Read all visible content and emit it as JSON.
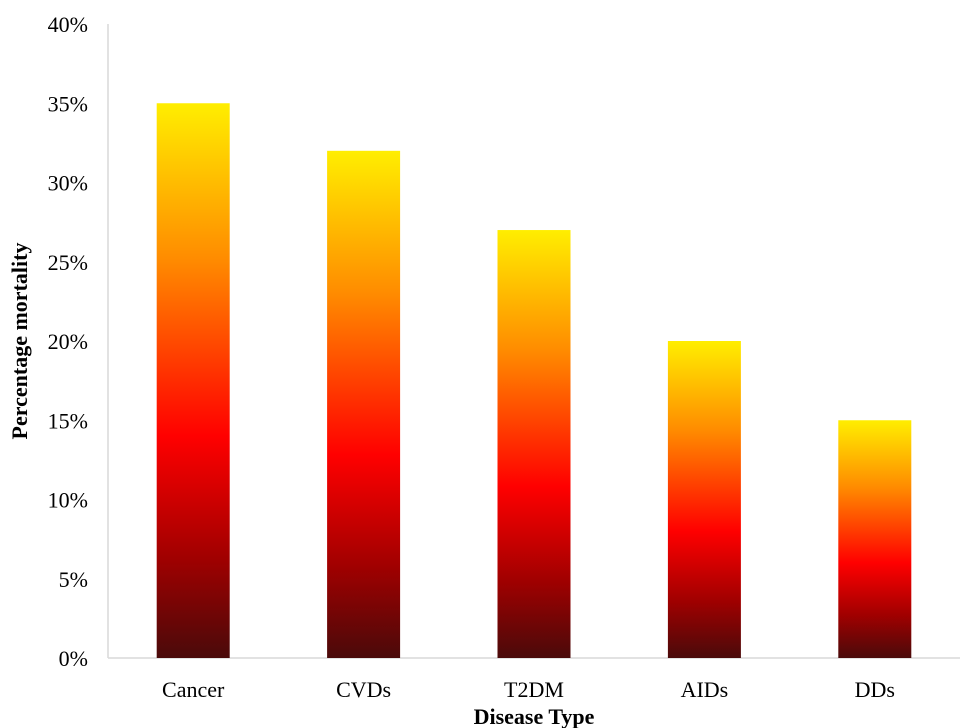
{
  "chart_data": {
    "type": "bar",
    "title": "",
    "xlabel": "Disease Type",
    "ylabel": "Percentage mortality",
    "categories": [
      "Cancer",
      "CVDs",
      "T2DM",
      "AIDs",
      "DDs"
    ],
    "values": [
      35,
      32,
      27,
      20,
      15
    ],
    "ylim": [
      0,
      40
    ],
    "yticks": [
      0,
      5,
      10,
      15,
      20,
      25,
      30,
      35,
      40
    ],
    "ytick_labels": [
      "0%",
      "5%",
      "10%",
      "15%",
      "20%",
      "25%",
      "30%",
      "35%",
      "40%"
    ],
    "grid": false,
    "legend": "none",
    "colors": {
      "gradient_bottom": "#4a0a0a",
      "gradient_lower": "#a00000",
      "gradient_mid": "#ff0000",
      "gradient_upper": "#ff8c00",
      "gradient_top": "#ffee00",
      "axis": "#d9d9d9"
    }
  }
}
